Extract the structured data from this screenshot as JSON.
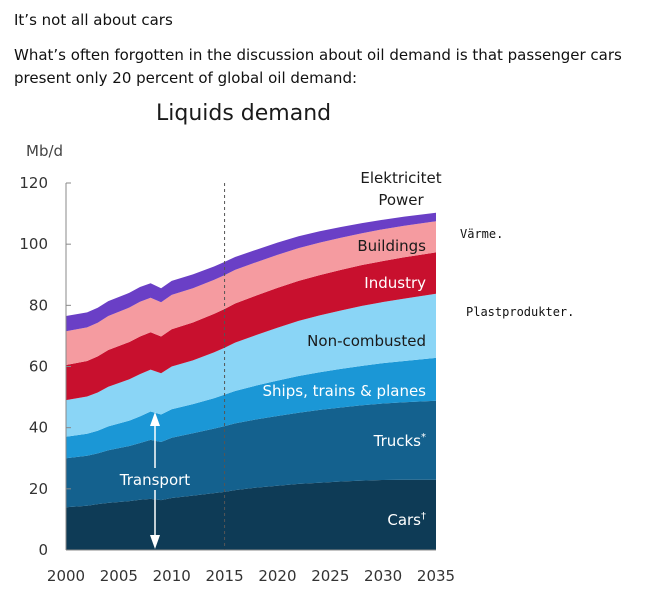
{
  "heading": "It’s not all about cars",
  "intro": "What’s often forgotten in the discussion about oil demand is that passenger cars present only 20 percent of global oil demand:",
  "notes": {
    "varme": "Värme.",
    "plast": "Plastprodukter."
  },
  "chart_data": {
    "type": "area",
    "stacked": true,
    "title": "Liquids demand",
    "ylabel": "Mb/d",
    "xlabel": "",
    "xlim": [
      2000,
      2035
    ],
    "ylim": [
      0,
      120
    ],
    "xticks": [
      2000,
      2005,
      2010,
      2015,
      2020,
      2025,
      2030,
      2035
    ],
    "yticks": [
      0,
      20,
      40,
      60,
      80,
      100,
      120
    ],
    "projection_start": 2015,
    "x": [
      2000,
      2002,
      2003,
      2004,
      2006,
      2007,
      2008,
      2009,
      2010,
      2012,
      2014,
      2015,
      2016,
      2018,
      2020,
      2022,
      2024,
      2026,
      2028,
      2030,
      2032,
      2035
    ],
    "series": [
      {
        "name": "Cars",
        "label": "Cars†",
        "color": "#0e3b56",
        "values": [
          14.0,
          14.5,
          15.0,
          15.4,
          16.0,
          16.4,
          16.7,
          16.3,
          17.0,
          17.8,
          18.6,
          19.0,
          19.6,
          20.4,
          21.0,
          21.6,
          22.0,
          22.4,
          22.7,
          22.9,
          23.0,
          23.0
        ]
      },
      {
        "name": "Trucks",
        "label": "Trucks*",
        "color": "#14618e",
        "values": [
          16.0,
          16.3,
          16.6,
          17.2,
          18.0,
          18.6,
          19.3,
          19.0,
          19.7,
          20.4,
          21.1,
          21.5,
          21.8,
          22.3,
          22.8,
          23.3,
          23.8,
          24.2,
          24.6,
          25.0,
          25.3,
          25.8
        ]
      },
      {
        "name": "Ships, trains & planes",
        "label": "Ships, trains & planes",
        "color": "#1b97d6",
        "values": [
          7.0,
          7.2,
          7.4,
          7.8,
          8.3,
          8.7,
          9.3,
          9.0,
          9.3,
          9.5,
          9.9,
          10.3,
          10.6,
          11.1,
          11.6,
          12.0,
          12.3,
          12.6,
          12.9,
          13.2,
          13.5,
          14.0
        ]
      },
      {
        "name": "Non-combusted",
        "label": "Non-combusted",
        "color": "#8ad5f6",
        "values": [
          12.0,
          12.2,
          12.5,
          13.0,
          13.5,
          13.8,
          13.7,
          13.5,
          14.0,
          14.3,
          15.0,
          15.3,
          15.8,
          16.5,
          17.3,
          18.0,
          18.6,
          19.1,
          19.6,
          20.0,
          20.4,
          21.0
        ]
      },
      {
        "name": "Industry",
        "label": "Industry",
        "color": "#c8102e",
        "values": [
          11.5,
          11.6,
          11.8,
          12.0,
          12.2,
          12.3,
          12.2,
          12.0,
          12.2,
          12.4,
          12.6,
          12.7,
          12.8,
          12.9,
          13.0,
          13.1,
          13.2,
          13.3,
          13.4,
          13.4,
          13.5,
          13.5
        ]
      },
      {
        "name": "Buildings",
        "label": "Buildings",
        "color": "#f59ba0",
        "values": [
          11.0,
          11.0,
          11.0,
          11.1,
          11.3,
          11.4,
          11.3,
          11.2,
          11.2,
          11.2,
          11.1,
          11.1,
          11.0,
          10.9,
          10.8,
          10.7,
          10.6,
          10.5,
          10.4,
          10.4,
          10.3,
          10.2
        ]
      },
      {
        "name": "Power",
        "label": "Power",
        "color": "#6a3fc6",
        "values": [
          5.0,
          4.9,
          4.9,
          4.9,
          4.8,
          4.8,
          4.7,
          4.6,
          4.6,
          4.5,
          4.4,
          4.3,
          4.2,
          4.1,
          4.0,
          3.9,
          3.7,
          3.5,
          3.3,
          3.1,
          3.0,
          2.8
        ]
      }
    ],
    "annotations": {
      "electricity": "Elektricitet",
      "transport": "Transport"
    }
  }
}
